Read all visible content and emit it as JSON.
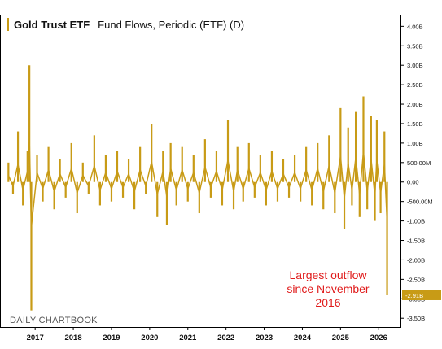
{
  "chart_data": {
    "type": "bar",
    "title": "Gold Trust ETF",
    "subtitle": "Fund Flows, Periodic (ETF) (D)",
    "watermark": "DAILY CHARTBOOK",
    "annotation_lines": [
      "Largest outflow",
      "since November",
      "2016"
    ],
    "last_value_label": "-2.91B",
    "last_value": -2.91,
    "ylim": [
      -3.6,
      4.3
    ],
    "xlim": [
      2016.25,
      2026.4
    ],
    "y_ticks": [
      {
        "value": 4.0,
        "label": "4.00B"
      },
      {
        "value": 3.5,
        "label": "3.50B"
      },
      {
        "value": 3.0,
        "label": "3.00B"
      },
      {
        "value": 2.5,
        "label": "2.50B"
      },
      {
        "value": 2.0,
        "label": "2.00B"
      },
      {
        "value": 1.5,
        "label": "1.50B"
      },
      {
        "value": 1.0,
        "label": "1.00B"
      },
      {
        "value": 0.5,
        "label": "500.00M"
      },
      {
        "value": 0.0,
        "label": "0.00"
      },
      {
        "value": -0.5,
        "label": "-500.00M"
      },
      {
        "value": -1.0,
        "label": "-1.00B"
      },
      {
        "value": -1.5,
        "label": "-1.50B"
      },
      {
        "value": -2.0,
        "label": "-2.00B"
      },
      {
        "value": -2.5,
        "label": "-2.50B"
      },
      {
        "value": -3.0,
        "label": "-3.00B"
      },
      {
        "value": -3.5,
        "label": "-3.50B"
      }
    ],
    "x_ticks": [
      {
        "value": 2017.0,
        "label": "2017"
      },
      {
        "value": 2018.0,
        "label": "2018"
      },
      {
        "value": 2019.0,
        "label": "2019"
      },
      {
        "value": 2020.0,
        "label": "2020"
      },
      {
        "value": 2021.0,
        "label": "2021"
      },
      {
        "value": 2022.0,
        "label": "2022"
      },
      {
        "value": 2023.0,
        "label": "2023"
      },
      {
        "value": 2024.0,
        "label": "2024"
      },
      {
        "value": 2025.0,
        "label": "2025"
      },
      {
        "value": 2026.0,
        "label": "2026"
      }
    ],
    "series": [
      {
        "color": "#C89B16",
        "x": [
          2016.3,
          2016.42,
          2016.55,
          2016.68,
          2016.8,
          2016.85,
          2016.9,
          2017.05,
          2017.2,
          2017.35,
          2017.5,
          2017.65,
          2017.8,
          2017.95,
          2018.1,
          2018.25,
          2018.4,
          2018.55,
          2018.7,
          2018.85,
          2019.0,
          2019.15,
          2019.3,
          2019.45,
          2019.6,
          2019.75,
          2019.9,
          2020.05,
          2020.2,
          2020.35,
          2020.45,
          2020.55,
          2020.7,
          2020.85,
          2021.0,
          2021.15,
          2021.3,
          2021.45,
          2021.6,
          2021.75,
          2021.9,
          2022.05,
          2022.2,
          2022.3,
          2022.45,
          2022.6,
          2022.75,
          2022.9,
          2023.05,
          2023.2,
          2023.35,
          2023.5,
          2023.65,
          2023.8,
          2023.95,
          2024.1,
          2024.25,
          2024.4,
          2024.55,
          2024.7,
          2024.85,
          2025.0,
          2025.1,
          2025.2,
          2025.3,
          2025.4,
          2025.5,
          2025.6,
          2025.7,
          2025.8,
          2025.9,
          2025.95,
          2026.05,
          2026.15,
          2026.22
        ],
        "values": [
          0.5,
          -0.3,
          1.3,
          -0.6,
          0.8,
          3.0,
          -3.3,
          0.7,
          -0.5,
          0.9,
          -0.7,
          0.6,
          -0.4,
          1.0,
          -0.8,
          0.5,
          -0.3,
          1.2,
          -0.6,
          0.7,
          -0.5,
          0.8,
          -0.4,
          0.6,
          -0.7,
          0.9,
          -0.3,
          1.5,
          -0.9,
          0.8,
          -1.1,
          1.0,
          -0.6,
          0.9,
          -0.5,
          0.7,
          -0.8,
          1.1,
          -0.4,
          0.8,
          -0.6,
          1.6,
          -0.7,
          0.9,
          -0.5,
          1.0,
          -0.4,
          0.7,
          -0.6,
          0.8,
          -0.5,
          0.6,
          -0.4,
          0.7,
          -0.5,
          0.9,
          -0.6,
          1.0,
          -0.7,
          1.2,
          -0.8,
          1.9,
          -1.2,
          1.4,
          -0.6,
          1.8,
          -0.9,
          2.2,
          -0.7,
          1.7,
          -1.0,
          1.6,
          -0.8,
          1.3,
          -2.91
        ]
      }
    ],
    "grid": false
  }
}
